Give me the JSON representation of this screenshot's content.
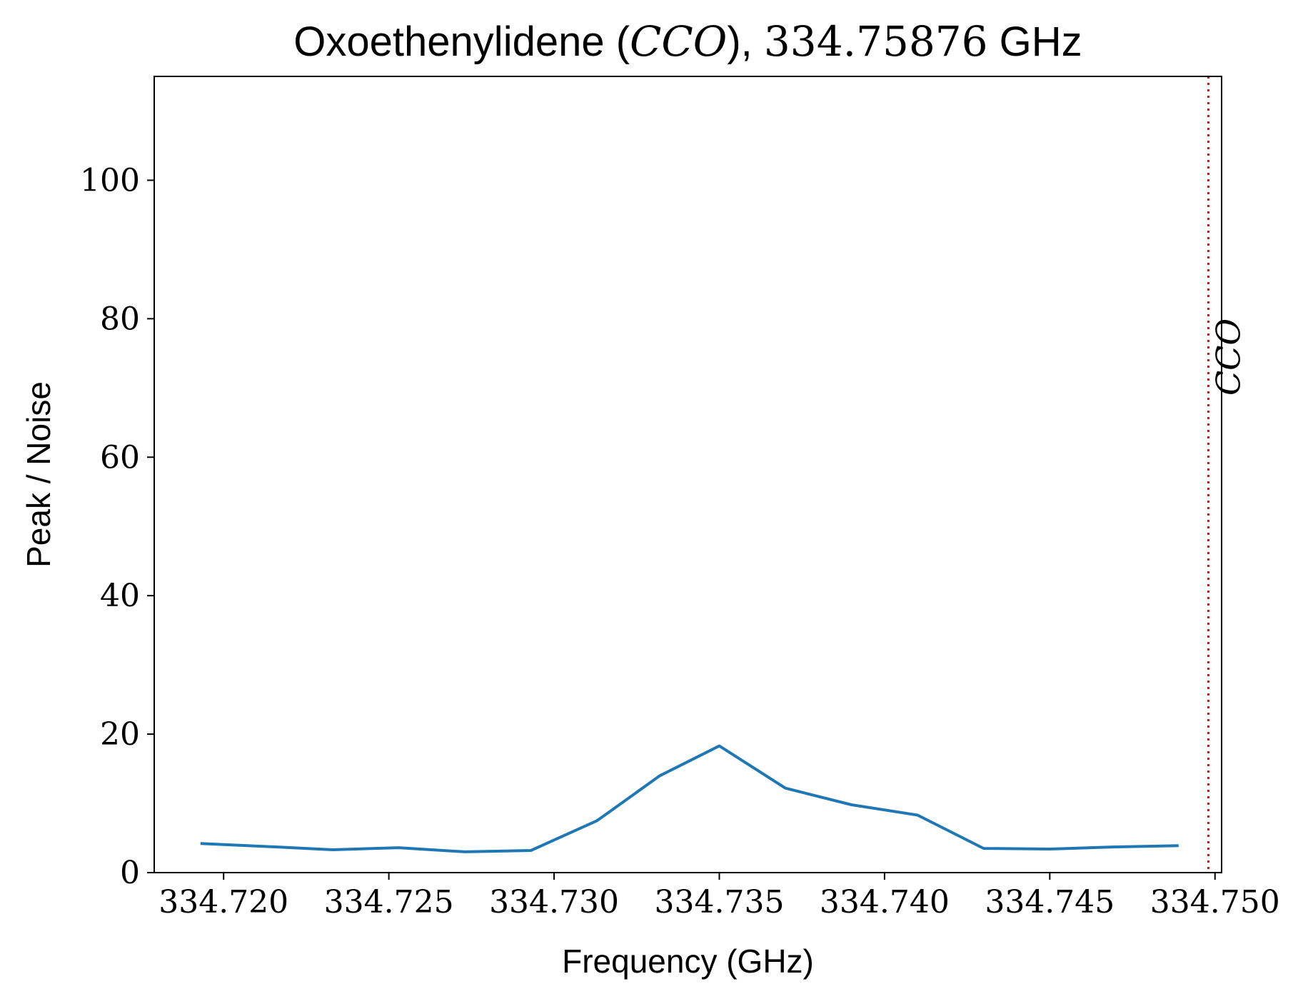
{
  "chart_data": {
    "type": "line",
    "title": {
      "prefix": "Oxoethenylidene (",
      "molecule": "CCO",
      "middle": "), ",
      "frequency": "334.75876",
      "suffix": " GHz"
    },
    "xlabel": "Frequency (GHz)",
    "ylabel": "Peak / Noise",
    "xlim": [
      334.7179,
      334.7502
    ],
    "ylim": [
      0,
      115
    ],
    "x_ticks": [
      334.72,
      334.725,
      334.73,
      334.735,
      334.74,
      334.745,
      334.75
    ],
    "x_tick_labels": [
      "334.720",
      "334.725",
      "334.730",
      "334.735",
      "334.740",
      "334.745",
      "334.750"
    ],
    "y_ticks": [
      0,
      20,
      40,
      60,
      80,
      100
    ],
    "y_tick_labels": [
      "0",
      "20",
      "40",
      "60",
      "80",
      "100"
    ],
    "grid": false,
    "series": [
      {
        "color": "#1f77b4",
        "x": [
          334.7193,
          334.7212,
          334.7233,
          334.7253,
          334.7273,
          334.7293,
          334.7313,
          334.7332,
          334.735,
          334.737,
          334.739,
          334.741,
          334.743,
          334.745,
          334.7469,
          334.7489
        ],
        "y": [
          4.2,
          3.8,
          3.3,
          3.6,
          3.0,
          3.2,
          7.5,
          14.0,
          18.3,
          12.2,
          9.8,
          8.3,
          3.5,
          3.4,
          3.7,
          3.9
        ]
      }
    ],
    "annotations": [
      {
        "type": "vline",
        "x": 334.7498,
        "color": "#ff0000",
        "style": "dotted",
        "label": "CCO"
      }
    ]
  }
}
